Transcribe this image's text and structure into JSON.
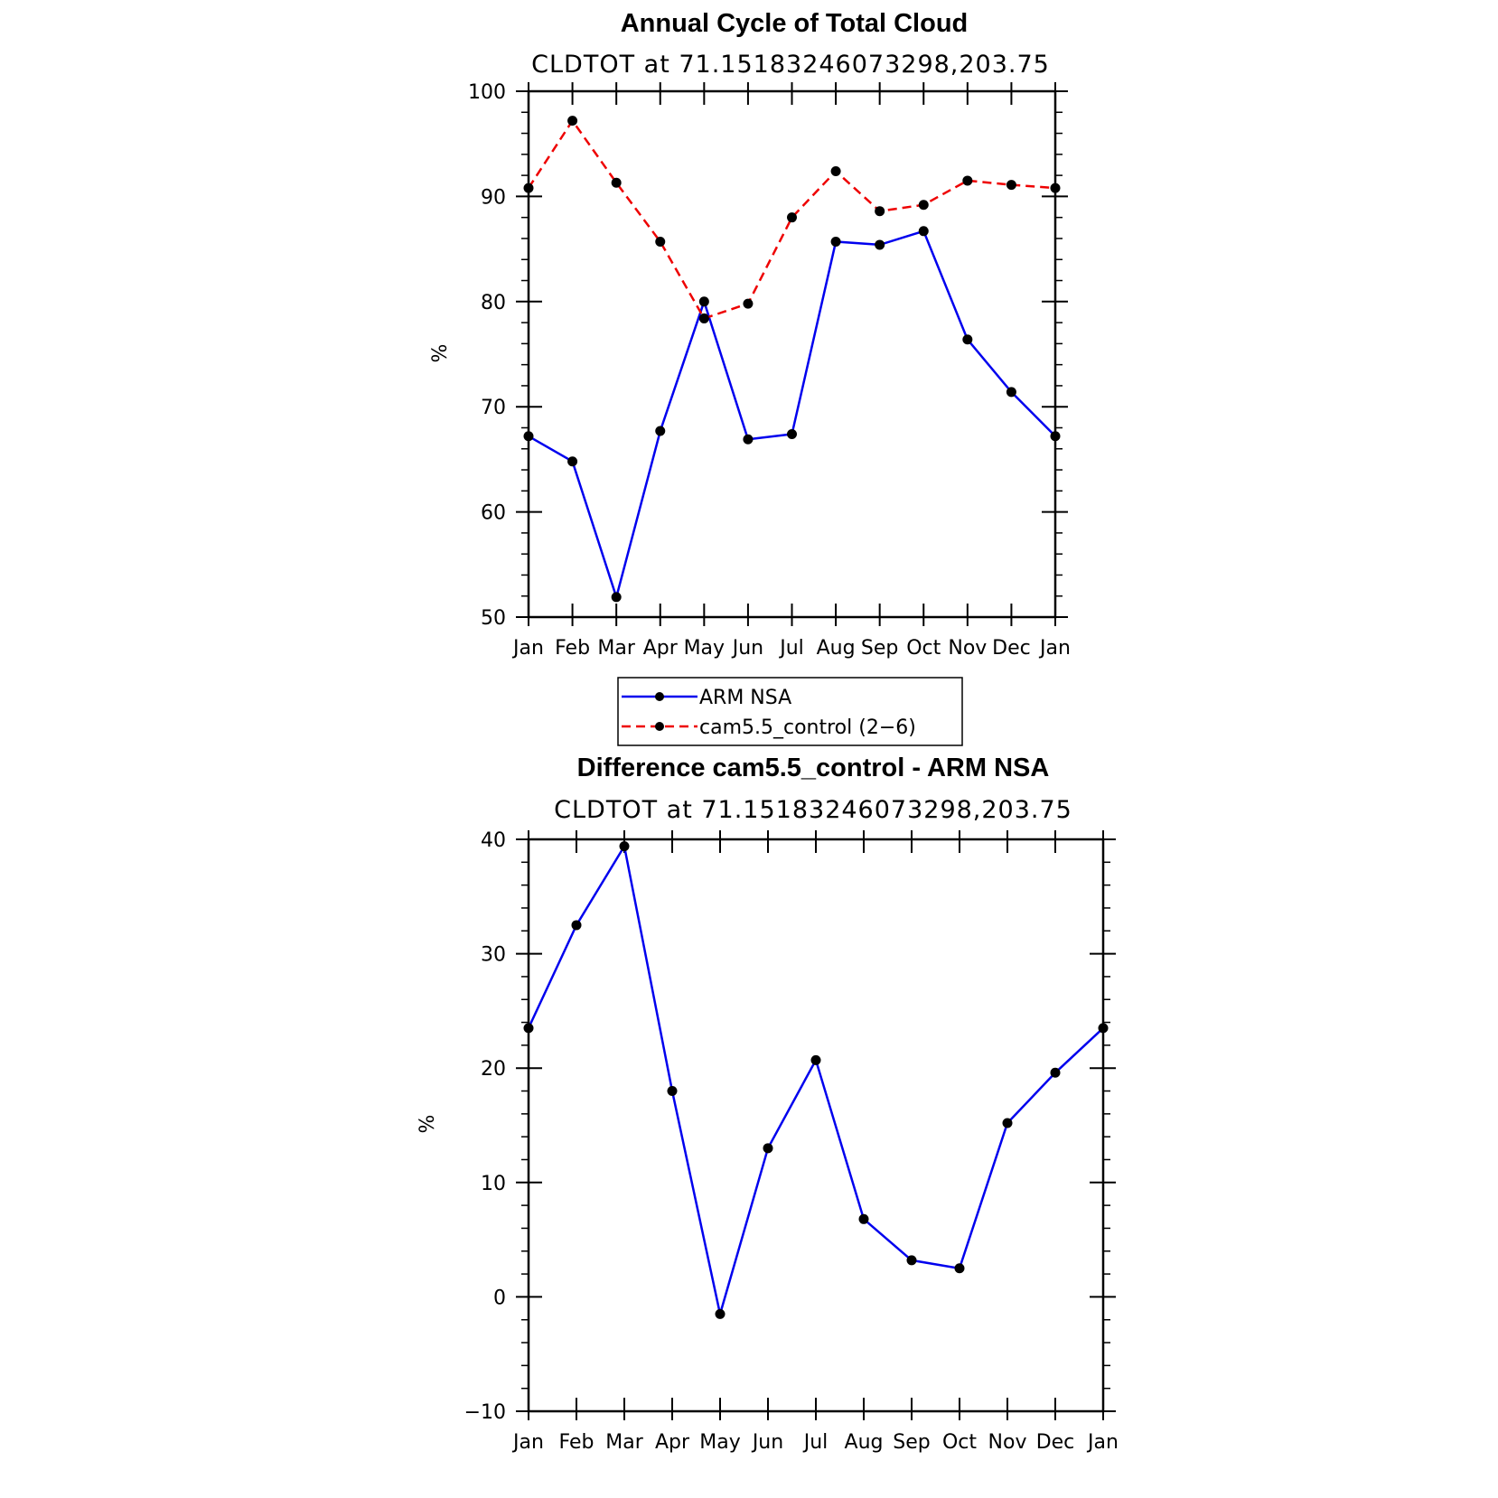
{
  "chart_data": [
    {
      "type": "line",
      "title": "Annual Cycle of Total Cloud",
      "subtitle": "CLDTOT at 71.15183246073298,203.75",
      "ylabel": "%",
      "ylim": [
        50,
        100
      ],
      "yticks": [
        50,
        60,
        70,
        80,
        90,
        100
      ],
      "categories": [
        "Jan",
        "Feb",
        "Mar",
        "Apr",
        "May",
        "Jun",
        "Jul",
        "Aug",
        "Sep",
        "Oct",
        "Nov",
        "Dec",
        "Jan"
      ],
      "series": [
        {
          "name": "ARM NSA",
          "color": "#0000ee",
          "dash": "solid",
          "values": [
            67.2,
            64.8,
            51.9,
            67.7,
            80.0,
            66.9,
            67.4,
            85.7,
            85.4,
            86.7,
            76.4,
            71.4,
            67.2
          ]
        },
        {
          "name": "cam5.5_control (2−6)",
          "color": "#ee0000",
          "dash": "dashed",
          "values": [
            90.8,
            97.2,
            91.3,
            85.7,
            78.4,
            79.8,
            88.0,
            92.4,
            88.6,
            89.2,
            91.5,
            91.1,
            90.8
          ]
        }
      ],
      "legend": {
        "position": "below"
      }
    },
    {
      "type": "line",
      "title": "Difference cam5.5_control - ARM NSA",
      "subtitle": "CLDTOT at 71.15183246073298,203.75",
      "ylabel": "%",
      "ylim": [
        -10,
        40
      ],
      "yticks": [
        -10,
        0,
        10,
        20,
        30,
        40
      ],
      "yticklabels": [
        "−10",
        "0",
        "10",
        "20",
        "30",
        "40"
      ],
      "categories": [
        "Jan",
        "Feb",
        "Mar",
        "Apr",
        "May",
        "Jun",
        "Jul",
        "Aug",
        "Sep",
        "Oct",
        "Nov",
        "Dec",
        "Jan"
      ],
      "series": [
        {
          "color": "#0000ee",
          "dash": "solid",
          "values": [
            23.5,
            32.5,
            39.4,
            18.0,
            -1.5,
            13.0,
            20.7,
            6.8,
            3.2,
            2.5,
            15.2,
            19.6,
            23.5
          ]
        }
      ]
    }
  ]
}
